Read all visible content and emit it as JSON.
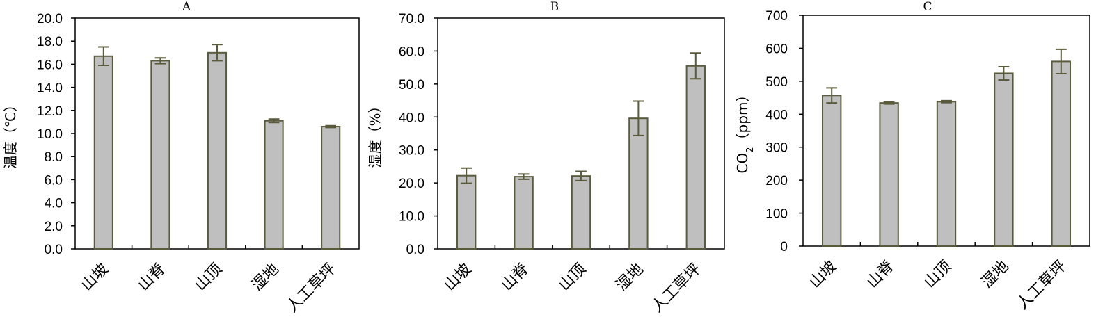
{
  "chart_data": [
    {
      "type": "bar",
      "title": "A",
      "ylabel": "温度（℃）",
      "ylabel_sub": "",
      "categories": [
        "山坡",
        "山脊",
        "山顶",
        "湿地",
        "人工草坪"
      ],
      "values": [
        16.7,
        16.3,
        17.0,
        11.1,
        10.6
      ],
      "errors": [
        0.8,
        0.25,
        0.7,
        0.15,
        0.08
      ],
      "ylim": [
        0,
        20
      ],
      "yticks": [
        0,
        2,
        4,
        6,
        8,
        10,
        12,
        14,
        16,
        18,
        20
      ],
      "ytick_labels": [
        "0.0",
        "2.0",
        "4.0",
        "6.0",
        "8.0",
        "10.0",
        "12.0",
        "14.0",
        "16.0",
        "18.0",
        "20.0"
      ],
      "grid": false,
      "colors": {
        "bar_fill": "#bfbfbf",
        "bar_stroke": "#5a5a3c",
        "error": "#5a5a3c"
      }
    },
    {
      "type": "bar",
      "title": "B",
      "ylabel": "湿度（%）",
      "ylabel_sub": "",
      "categories": [
        "山坡",
        "山脊",
        "山顶",
        "湿地",
        "人工草坪"
      ],
      "values": [
        22.2,
        21.9,
        22.1,
        39.6,
        55.5
      ],
      "errors": [
        2.3,
        0.8,
        1.4,
        5.2,
        3.9
      ],
      "ylim": [
        0,
        70
      ],
      "yticks": [
        0,
        10,
        20,
        30,
        40,
        50,
        60,
        70
      ],
      "ytick_labels": [
        "0.0",
        "10.0",
        "20.0",
        "30.0",
        "40.0",
        "50.0",
        "60.0",
        "70.0"
      ],
      "grid": false,
      "colors": {
        "bar_fill": "#bfbfbf",
        "bar_stroke": "#5a5a3c",
        "error": "#5a5a3c"
      }
    },
    {
      "type": "bar",
      "title": "C",
      "ylabel": "CO（ppm）",
      "ylabel_sub": "2",
      "categories": [
        "山坡",
        "山脊",
        "山顶",
        "湿地",
        "人工草坪"
      ],
      "values": [
        457,
        434,
        438,
        524,
        560
      ],
      "errors": [
        23,
        3,
        3,
        20,
        37
      ],
      "ylim": [
        0,
        700
      ],
      "yticks": [
        0,
        100,
        200,
        300,
        400,
        500,
        600,
        700
      ],
      "ytick_labels": [
        "0",
        "100",
        "200",
        "300",
        "400",
        "500",
        "600",
        "700"
      ],
      "grid": false,
      "colors": {
        "bar_fill": "#bfbfbf",
        "bar_stroke": "#5a5a3c",
        "error": "#5a5a3c"
      }
    }
  ]
}
